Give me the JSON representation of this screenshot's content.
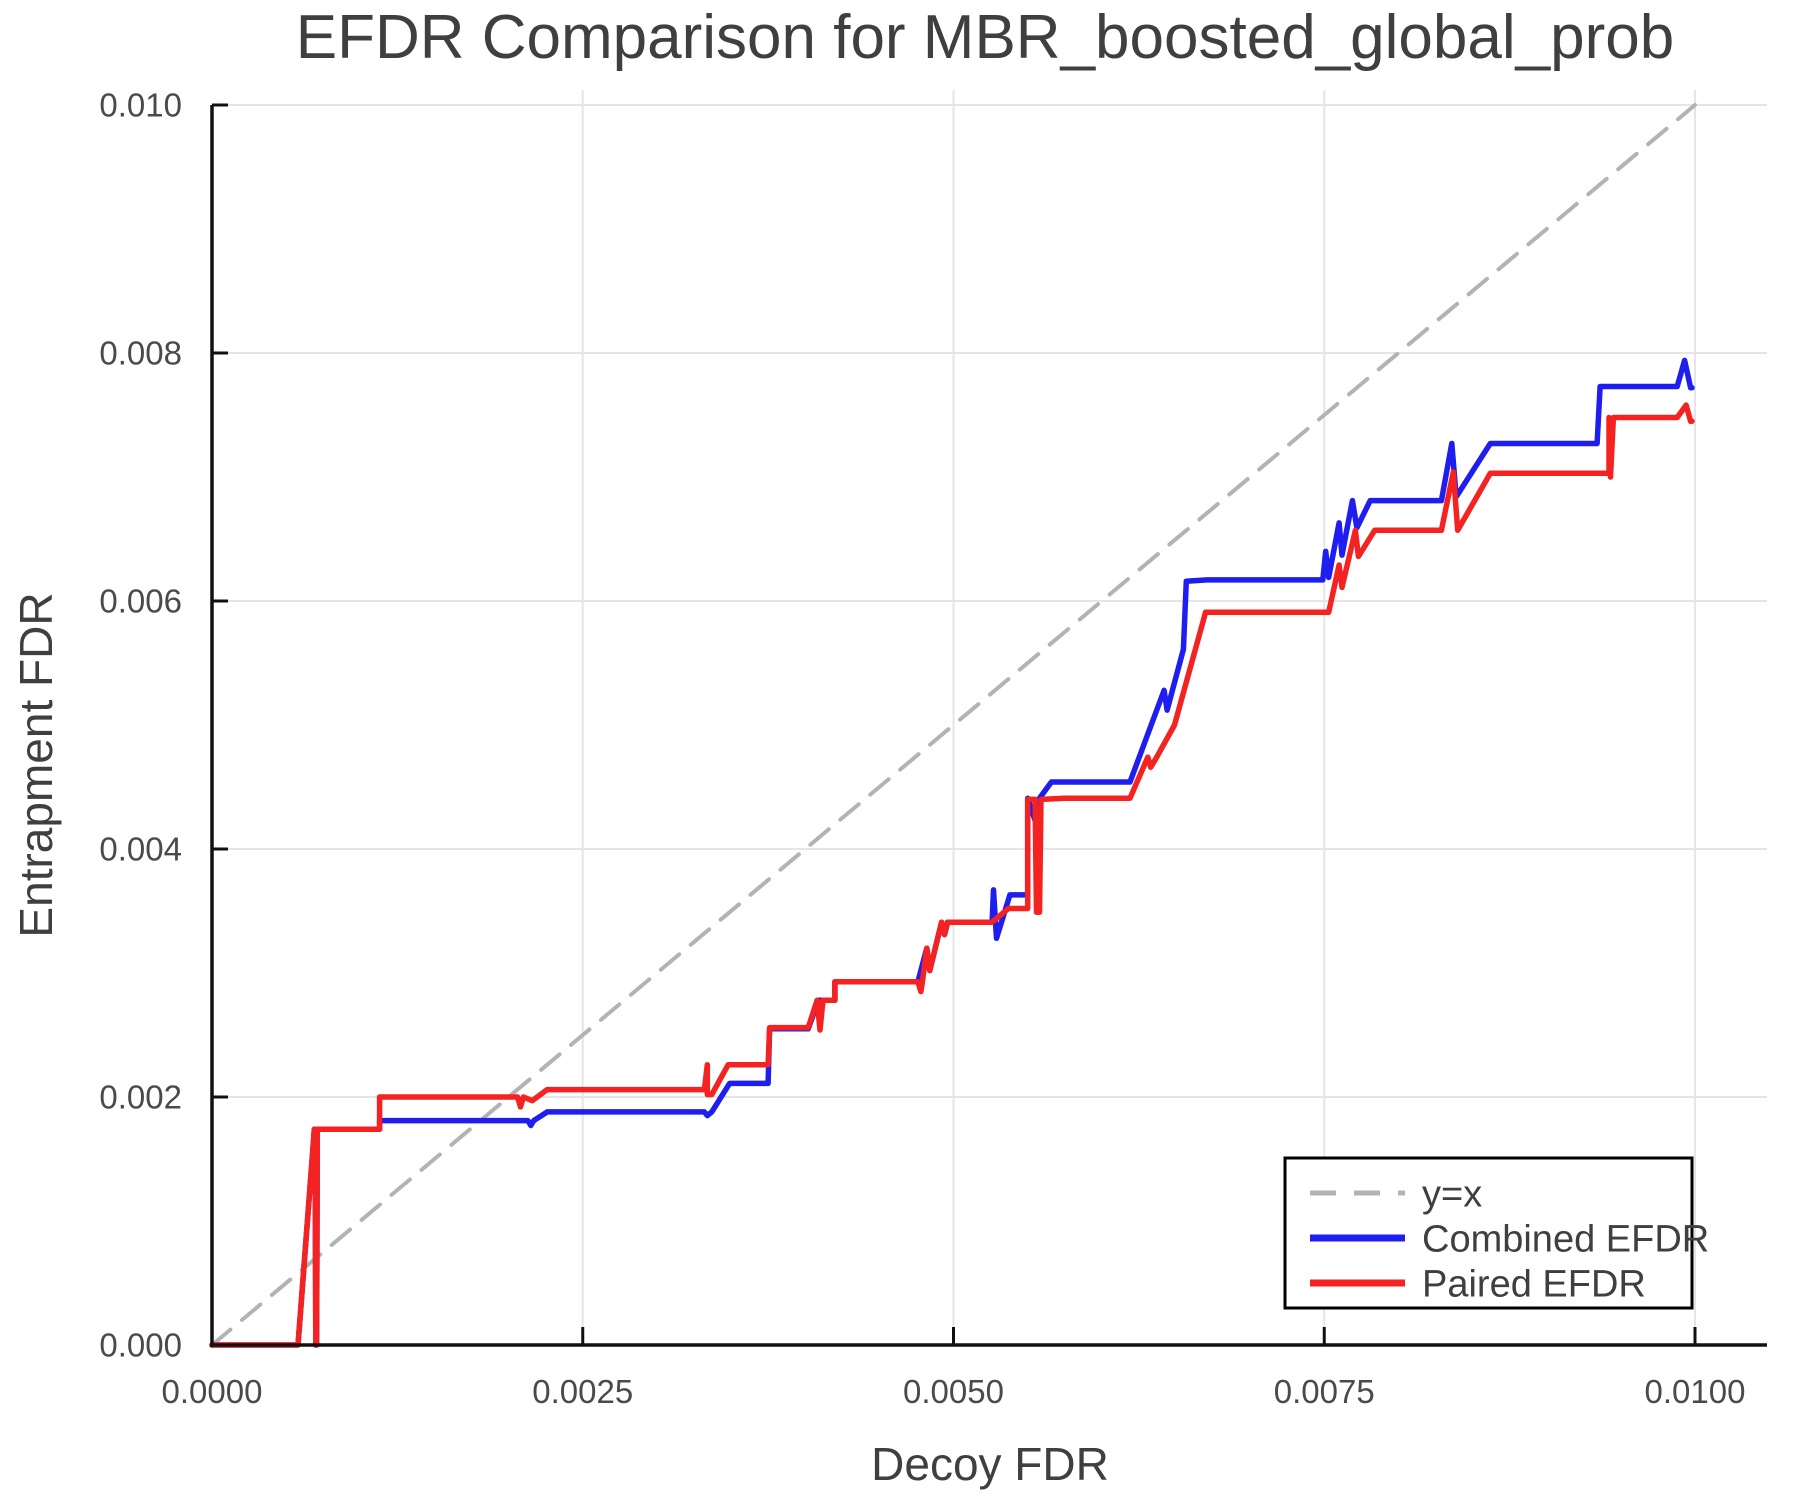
{
  "title": "EFDR Comparison for MBR_boosted_global_prob",
  "x_axis": {
    "label": "Decoy FDR"
  },
  "y_axis": {
    "label": "Entrapment FDR"
  },
  "legend": {
    "items": [
      {
        "label": "y=x",
        "color": "#b3b3b3",
        "dashed": true
      },
      {
        "label": "Combined EFDR",
        "color": "#1e1ef0",
        "dashed": false
      },
      {
        "label": "Paired EFDR",
        "color": "#f52222",
        "dashed": false
      }
    ]
  },
  "colors": {
    "grid": "#e5e5e5",
    "spine": "#111111",
    "identity": "#b3b3b3",
    "combined": "#1e1ef0",
    "paired": "#f52222",
    "text": "#3f3f3f"
  },
  "chart_data": {
    "type": "line",
    "title": "EFDR Comparison for MBR_boosted_global_prob",
    "xlabel": "Decoy FDR",
    "ylabel": "Entrapment FDR",
    "xlim": [
      0,
      0.0105
    ],
    "ylim": [
      0,
      0.0101
    ],
    "grid": true,
    "legend_position": "lower right",
    "x_ticks": [
      {
        "label": "0.0000",
        "value": 0.0
      },
      {
        "label": "0.0025",
        "value": 0.0025
      },
      {
        "label": "0.0050",
        "value": 0.005
      },
      {
        "label": "0.0075",
        "value": 0.0075
      },
      {
        "label": "0.0100",
        "value": 0.01
      }
    ],
    "y_ticks": [
      {
        "label": "0.000",
        "value": 0.0
      },
      {
        "label": "0.002",
        "value": 0.002
      },
      {
        "label": "0.004",
        "value": 0.004
      },
      {
        "label": "0.006",
        "value": 0.006
      },
      {
        "label": "0.008",
        "value": 0.008
      },
      {
        "label": "0.010",
        "value": 0.01
      }
    ],
    "series": [
      {
        "name": "y=x",
        "color": "#b3b3b3",
        "dashed": true,
        "points": [
          [
            0,
            0
          ],
          [
            0.01,
            0.01
          ]
        ]
      },
      {
        "name": "Combined EFDR",
        "color": "#1e1ef0",
        "dashed": false,
        "points": [
          [
            0,
            0
          ],
          [
            0.00058,
            0
          ],
          [
            0.00068,
            0.00157
          ],
          [
            0.00069,
            0.00174
          ],
          [
            0.000695,
            0.00174
          ],
          [
            0.0007,
            0
          ],
          [
            0.000705,
            0
          ],
          [
            0.00071,
            0.00174
          ],
          [
            0.00113,
            0.00174
          ],
          [
            0.00113,
            0.00181
          ],
          [
            0.00213,
            0.00181
          ],
          [
            0.00215,
            0.00177
          ],
          [
            0.00217,
            0.00181
          ],
          [
            0.00226,
            0.00188
          ],
          [
            0.00332,
            0.00188
          ],
          [
            0.00334,
            0.00185
          ],
          [
            0.00337,
            0.00188
          ],
          [
            0.00349,
            0.00211
          ],
          [
            0.00375,
            0.00211
          ],
          [
            0.00376,
            0.00255
          ],
          [
            0.00402,
            0.00255
          ],
          [
            0.00409,
            0.00278
          ],
          [
            0.00411,
            0.00278
          ],
          [
            0.0042,
            0.00278
          ],
          [
            0.0042,
            0.00293
          ],
          [
            0.00476,
            0.00293
          ],
          [
            0.00482,
            0.0032
          ],
          [
            0.00484,
            0.00302
          ],
          [
            0.00492,
            0.00341
          ],
          [
            0.00494,
            0.00331
          ],
          [
            0.00496,
            0.00341
          ],
          [
            0.00526,
            0.00341
          ],
          [
            0.00527,
            0.00367
          ],
          [
            0.00529,
            0.00328
          ],
          [
            0.00538,
            0.00363
          ],
          [
            0.0055,
            0.00363
          ],
          [
            0.0055,
            0.00441
          ],
          [
            0.00555,
            0.00423
          ],
          [
            0.00558,
            0.00441
          ],
          [
            0.00566,
            0.00454
          ],
          [
            0.00619,
            0.00454
          ],
          [
            0.00642,
            0.00528
          ],
          [
            0.00644,
            0.00512
          ],
          [
            0.00655,
            0.00561
          ],
          [
            0.00657,
            0.00616
          ],
          [
            0.00671,
            0.00617
          ],
          [
            0.00749,
            0.00617
          ],
          [
            0.00751,
            0.0064
          ],
          [
            0.00753,
            0.00619
          ],
          [
            0.0076,
            0.00663
          ],
          [
            0.00762,
            0.00637
          ],
          [
            0.00769,
            0.00681
          ],
          [
            0.00772,
            0.00659
          ],
          [
            0.00781,
            0.00681
          ],
          [
            0.00829,
            0.00681
          ],
          [
            0.00836,
            0.00727
          ],
          [
            0.00839,
            0.00684
          ],
          [
            0.00862,
            0.00727
          ],
          [
            0.00934,
            0.00727
          ],
          [
            0.00936,
            0.00773
          ],
          [
            0.00988,
            0.00773
          ],
          [
            0.00993,
            0.00794
          ],
          [
            0.00997,
            0.00772
          ],
          [
            0.00998,
            0.00772
          ]
        ]
      },
      {
        "name": "Paired EFDR",
        "color": "#f52222",
        "dashed": false,
        "points": [
          [
            0,
            0
          ],
          [
            0.00058,
            0
          ],
          [
            0.00068,
            0.00157
          ],
          [
            0.00069,
            0.00174
          ],
          [
            0.000695,
            0.00174
          ],
          [
            0.0007,
            0
          ],
          [
            0.000705,
            0
          ],
          [
            0.00071,
            0.00174
          ],
          [
            0.00113,
            0.00174
          ],
          [
            0.00113,
            0.002
          ],
          [
            0.00206,
            0.002
          ],
          [
            0.00208,
            0.00192
          ],
          [
            0.0021,
            0.002
          ],
          [
            0.00216,
            0.00197
          ],
          [
            0.00226,
            0.00206
          ],
          [
            0.00332,
            0.00206
          ],
          [
            0.00334,
            0.00226
          ],
          [
            0.00334,
            0.00202
          ],
          [
            0.00337,
            0.00202
          ],
          [
            0.00348,
            0.00226
          ],
          [
            0.00375,
            0.00226
          ],
          [
            0.00376,
            0.00256
          ],
          [
            0.00402,
            0.00256
          ],
          [
            0.00408,
            0.00278
          ],
          [
            0.0041,
            0.00254
          ],
          [
            0.00412,
            0.00278
          ],
          [
            0.0042,
            0.00278
          ],
          [
            0.0042,
            0.00293
          ],
          [
            0.00476,
            0.00293
          ],
          [
            0.00478,
            0.00285
          ],
          [
            0.00479,
            0.00293
          ],
          [
            0.00482,
            0.0032
          ],
          [
            0.00484,
            0.00302
          ],
          [
            0.00492,
            0.00341
          ],
          [
            0.00494,
            0.00331
          ],
          [
            0.00496,
            0.00341
          ],
          [
            0.00526,
            0.00341
          ],
          [
            0.00537,
            0.00352
          ],
          [
            0.0055,
            0.00352
          ],
          [
            0.0055,
            0.0044
          ],
          [
            0.00555,
            0.0044
          ],
          [
            0.00556,
            0.00349
          ],
          [
            0.00558,
            0.00349
          ],
          [
            0.00559,
            0.0044
          ],
          [
            0.00575,
            0.00441
          ],
          [
            0.00619,
            0.00441
          ],
          [
            0.00631,
            0.00474
          ],
          [
            0.00633,
            0.00466
          ],
          [
            0.00637,
            0.00474
          ],
          [
            0.00649,
            0.005
          ],
          [
            0.0067,
            0.00591
          ],
          [
            0.00753,
            0.00591
          ],
          [
            0.0076,
            0.00629
          ],
          [
            0.00762,
            0.00611
          ],
          [
            0.00771,
            0.00657
          ],
          [
            0.00773,
            0.00636
          ],
          [
            0.00784,
            0.00657
          ],
          [
            0.00829,
            0.00657
          ],
          [
            0.00837,
            0.00704
          ],
          [
            0.0084,
            0.00657
          ],
          [
            0.00862,
            0.00703
          ],
          [
            0.00931,
            0.00703
          ],
          [
            0.00942,
            0.00703
          ],
          [
            0.00942,
            0.00748
          ],
          [
            0.00943,
            0.007
          ],
          [
            0.00945,
            0.00748
          ],
          [
            0.00988,
            0.00748
          ],
          [
            0.00994,
            0.00758
          ],
          [
            0.00997,
            0.00745
          ],
          [
            0.00998,
            0.00745
          ]
        ]
      }
    ]
  }
}
